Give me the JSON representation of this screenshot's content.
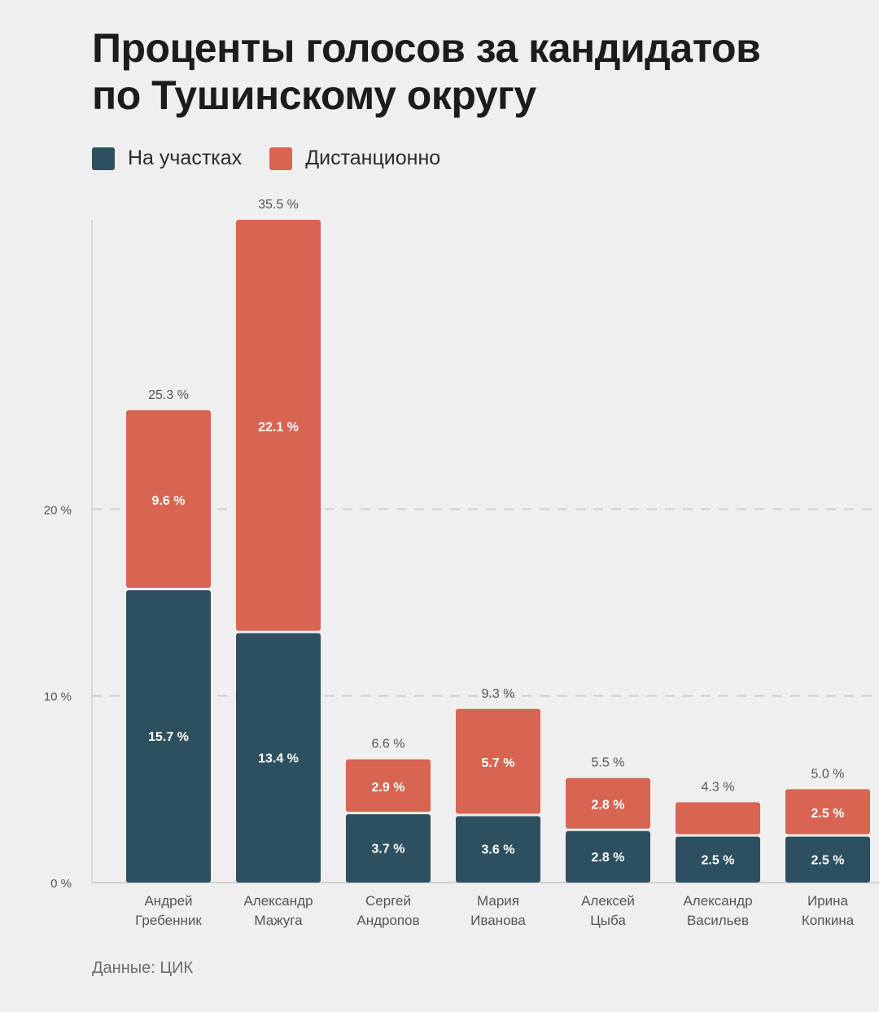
{
  "title_lines": [
    "Проценты голосов за кандидатов",
    "по Тушинскому округу"
  ],
  "legend": [
    {
      "label": "На участках",
      "color": "#2d5061"
    },
    {
      "label": "Дистанционно",
      "color": "#d86552"
    }
  ],
  "source": "Данные: ЦИК",
  "chart_data": {
    "type": "bar",
    "stacked": true,
    "title": "Проценты голосов за кандидатов по Тушинскому округу",
    "xlabel": "",
    "ylabel": "",
    "ylim": [
      0,
      35.5
    ],
    "yticks": [
      {
        "value": 0,
        "label": "0 %"
      },
      {
        "value": 10,
        "label": "10 %"
      },
      {
        "value": 20,
        "label": "20 %"
      }
    ],
    "categories": [
      [
        "Андрей",
        "Гребенник"
      ],
      [
        "Александр",
        "Мажуга"
      ],
      [
        "Сергей",
        "Андропов"
      ],
      [
        "Мария",
        "Иванова"
      ],
      [
        "Алексей",
        "Цыба"
      ],
      [
        "Александр",
        "Васильев"
      ],
      [
        "Ирина",
        "Копкина"
      ]
    ],
    "series": [
      {
        "name": "На участках",
        "color": "#2d5061",
        "values": [
          15.7,
          13.4,
          3.7,
          3.6,
          2.8,
          2.5,
          2.5
        ],
        "labels": [
          "15.7 %",
          "13.4 %",
          "3.7 %",
          "3.6 %",
          "2.8 %",
          "2.5 %",
          "2.5 %"
        ]
      },
      {
        "name": "Дистанционно",
        "color": "#d86552",
        "values": [
          9.6,
          22.1,
          2.9,
          5.7,
          2.8,
          1.8,
          2.5
        ],
        "labels": [
          "9.6 %",
          "22.1 %",
          "2.9 %",
          "5.7 %",
          "2.8 %",
          "",
          "2.5 %"
        ]
      }
    ],
    "totals": [
      25.3,
      35.5,
      6.6,
      9.3,
      5.5,
      4.3,
      5.0
    ],
    "total_labels": [
      "25.3 %",
      "35.5 %",
      "6.6 %",
      "9.3 %",
      "5.5 %",
      "4.3 %",
      "5.0 %"
    ],
    "grid": "dashed-horizontal",
    "legend_position": "top-left"
  }
}
